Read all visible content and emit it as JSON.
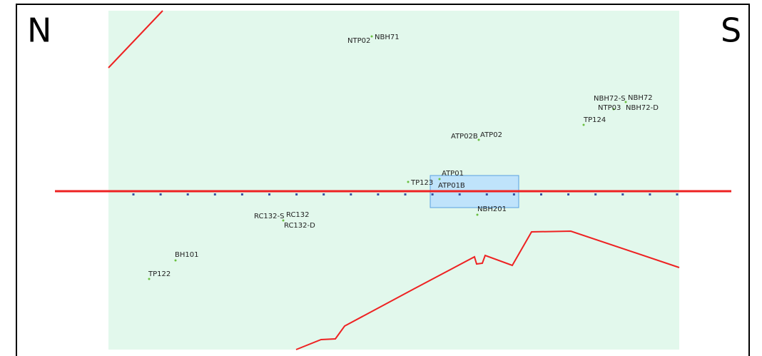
{
  "compass": {
    "left": "N",
    "right": "S"
  },
  "points": [
    {
      "label": "NTP02"
    },
    {
      "label": "NBH71"
    },
    {
      "label": "NBH72-S"
    },
    {
      "label": "NBH72"
    },
    {
      "label": "NTP03"
    },
    {
      "label": "NBH72-D"
    },
    {
      "label": "TP124"
    },
    {
      "label": "ATP02B"
    },
    {
      "label": "ATP02"
    },
    {
      "label": "ATP01"
    },
    {
      "label": "ATP01B"
    },
    {
      "label": "TP123"
    },
    {
      "label": "NBH201"
    },
    {
      "label": "RC132-S"
    },
    {
      "label": "RC132"
    },
    {
      "label": "RC132-D"
    },
    {
      "label": "BH101"
    },
    {
      "label": "TP122"
    }
  ]
}
